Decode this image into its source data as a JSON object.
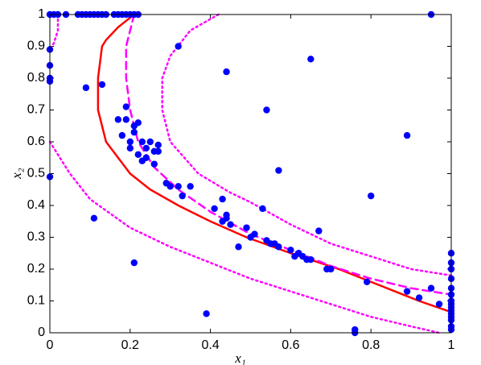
{
  "chart_data": {
    "type": "scatter",
    "xlabel": "x₁",
    "ylabel": "x₂",
    "xlim": [
      0,
      1
    ],
    "ylim": [
      0,
      1
    ],
    "xticks": [
      0,
      0.2,
      0.4,
      0.6,
      0.8,
      1
    ],
    "yticks": [
      0,
      0.1,
      0.2,
      0.3,
      0.4,
      0.5,
      0.6,
      0.7,
      0.8,
      0.9,
      1
    ],
    "series": [
      {
        "mode": "markers",
        "color": "#0000ff",
        "x": [
          0,
          0.01,
          0.02,
          0.04,
          0.07,
          0.08,
          0.09,
          0.1,
          0.11,
          0.12,
          0.13,
          0.14,
          0.16,
          0.17,
          0.18,
          0.19,
          0.2,
          0.21,
          0.22,
          0.95,
          0,
          0,
          0,
          0,
          0,
          0.32,
          0.65,
          0.44,
          0.13,
          0.09,
          0.54,
          0.89,
          0.57,
          0.8,
          0.11,
          0.21,
          0.39,
          0.76,
          0.76,
          0.19,
          0.19,
          0.17,
          0.21,
          0.21,
          0.22,
          0.2,
          0.18,
          0.2,
          0.22,
          0.23,
          0.24,
          0.25,
          0.24,
          0.26,
          0.27,
          0.26,
          0.27,
          0.23,
          0.29,
          0.3,
          0.32,
          0.35,
          0.33,
          0.41,
          0.43,
          0.43,
          0.44,
          0.45,
          0.44,
          0.47,
          0.49,
          0.5,
          0.51,
          0.53,
          0.54,
          0.55,
          0.56,
          0.57,
          0.6,
          0.61,
          0.62,
          0.63,
          0.64,
          0.65,
          0.67,
          0.69,
          0.7,
          0.79,
          0.89,
          0.92,
          0.95,
          0.97,
          1,
          1,
          1,
          1,
          1,
          1,
          1,
          1,
          1,
          1,
          1,
          1,
          1,
          1,
          1
        ],
        "values": [
          1,
          1,
          1,
          1,
          1,
          1,
          1,
          1,
          1,
          1,
          1,
          1,
          1,
          1,
          1,
          1,
          1,
          1,
          1,
          1,
          0.89,
          0.84,
          0.8,
          0.79,
          0.49,
          0.9,
          0.86,
          0.82,
          0.78,
          0.77,
          0.7,
          0.62,
          0.51,
          0.43,
          0.36,
          0.22,
          0.06,
          0,
          0.01,
          0.71,
          0.67,
          0.67,
          0.65,
          0.63,
          0.66,
          0.6,
          0.62,
          0.58,
          0.56,
          0.6,
          0.58,
          0.6,
          0.55,
          0.57,
          0.59,
          0.53,
          0.57,
          0.54,
          0.47,
          0.46,
          0.46,
          0.46,
          0.43,
          0.39,
          0.42,
          0.35,
          0.37,
          0.34,
          0.36,
          0.27,
          0.33,
          0.3,
          0.31,
          0.39,
          0.29,
          0.28,
          0.28,
          0.27,
          0.26,
          0.24,
          0.25,
          0.24,
          0.23,
          0.23,
          0.32,
          0.2,
          0.2,
          0.16,
          0.13,
          0.11,
          0.14,
          0.09,
          0.25,
          0.22,
          0.2,
          0.17,
          0.14,
          0.12,
          0.1,
          0.09,
          0.08,
          0.07,
          0.06,
          0.05,
          0.04,
          0.02,
          0.01
        ]
      },
      {
        "mode": "line",
        "style": "solid",
        "color": "#ff0000",
        "x": [
          0.21,
          0.2,
          0.17,
          0.14,
          0.13,
          0.12,
          0.12,
          0.12,
          0.14,
          0.2,
          0.25,
          0.32,
          0.4,
          0.49,
          0.6,
          0.72,
          0.82,
          0.92,
          1
        ],
        "values": [
          1,
          0.99,
          0.96,
          0.92,
          0.9,
          0.8,
          0.75,
          0.7,
          0.6,
          0.5,
          0.45,
          0.4,
          0.35,
          0.3,
          0.25,
          0.2,
          0.15,
          0.1,
          0.065
        ]
      },
      {
        "mode": "line",
        "style": "dashed",
        "color": "#ff00ff",
        "x": [
          0.21,
          0.2,
          0.19,
          0.19,
          0.2,
          0.22,
          0.26,
          0.32,
          0.4,
          0.5,
          0.6,
          0.7,
          0.8,
          0.9,
          1
        ],
        "values": [
          1,
          0.95,
          0.9,
          0.8,
          0.7,
          0.6,
          0.52,
          0.45,
          0.38,
          0.31,
          0.26,
          0.21,
          0.17,
          0.14,
          0.12
        ]
      },
      {
        "mode": "line",
        "style": "dotted",
        "color": "#ff00ff",
        "x": [
          0.42,
          0.35,
          0.3,
          0.28,
          0.28,
          0.3,
          0.37,
          0.45,
          0.5,
          0.6,
          0.7,
          0.8,
          0.9,
          1
        ],
        "values": [
          1,
          0.95,
          0.87,
          0.8,
          0.7,
          0.6,
          0.5,
          0.44,
          0.41,
          0.34,
          0.28,
          0.24,
          0.2,
          0.18
        ]
      },
      {
        "mode": "line",
        "style": "dotted",
        "color": "#ff00ff",
        "x": [
          0,
          0.05,
          0.1,
          0.2,
          0.3,
          0.4,
          0.5,
          0.6,
          0.7,
          0.8,
          0.9,
          0.97
        ],
        "values": [
          0.6,
          0.5,
          0.42,
          0.33,
          0.27,
          0.22,
          0.17,
          0.13,
          0.09,
          0.05,
          0.02,
          0
        ]
      },
      {
        "mode": "line",
        "style": "dotted",
        "color": "#ff00ff",
        "x": [
          0.02,
          0.02,
          0.01,
          0
        ],
        "values": [
          1,
          0.95,
          0.91,
          0.89
        ]
      }
    ]
  }
}
